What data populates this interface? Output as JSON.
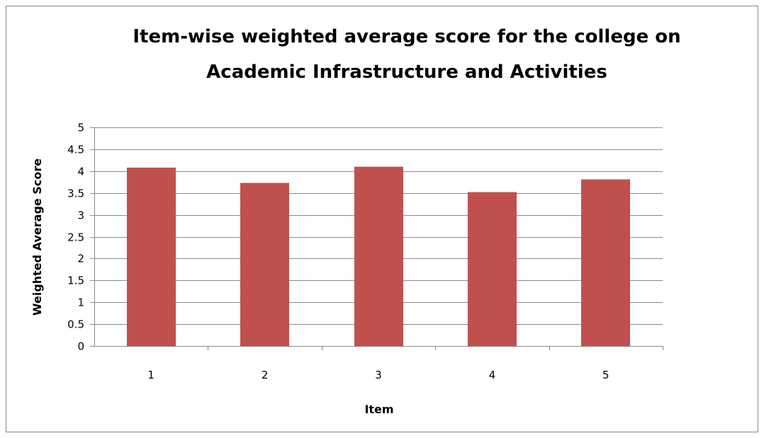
{
  "chart_data": {
    "type": "bar",
    "title_line1": "Item-wise weighted average score for the college on",
    "title_line2": "Academic Infrastructure and Activities",
    "xlabel": "Item",
    "ylabel": "Weighted Average Score",
    "categories": [
      "1",
      "2",
      "3",
      "4",
      "5"
    ],
    "values": [
      4.08,
      3.73,
      4.1,
      3.52,
      3.81
    ],
    "ylim": [
      0,
      5
    ],
    "ytick_step": 0.5,
    "yticks": [
      "0",
      "0.5",
      "1",
      "1.5",
      "2",
      "2.5",
      "3",
      "3.5",
      "4",
      "4.5",
      "5"
    ],
    "grid": true,
    "legend": "none",
    "colors": {
      "bar": "#C0504D",
      "grid": "#8C8C8C",
      "axis": "#8C8C8C",
      "text": "#000000",
      "border": "#888888"
    }
  }
}
